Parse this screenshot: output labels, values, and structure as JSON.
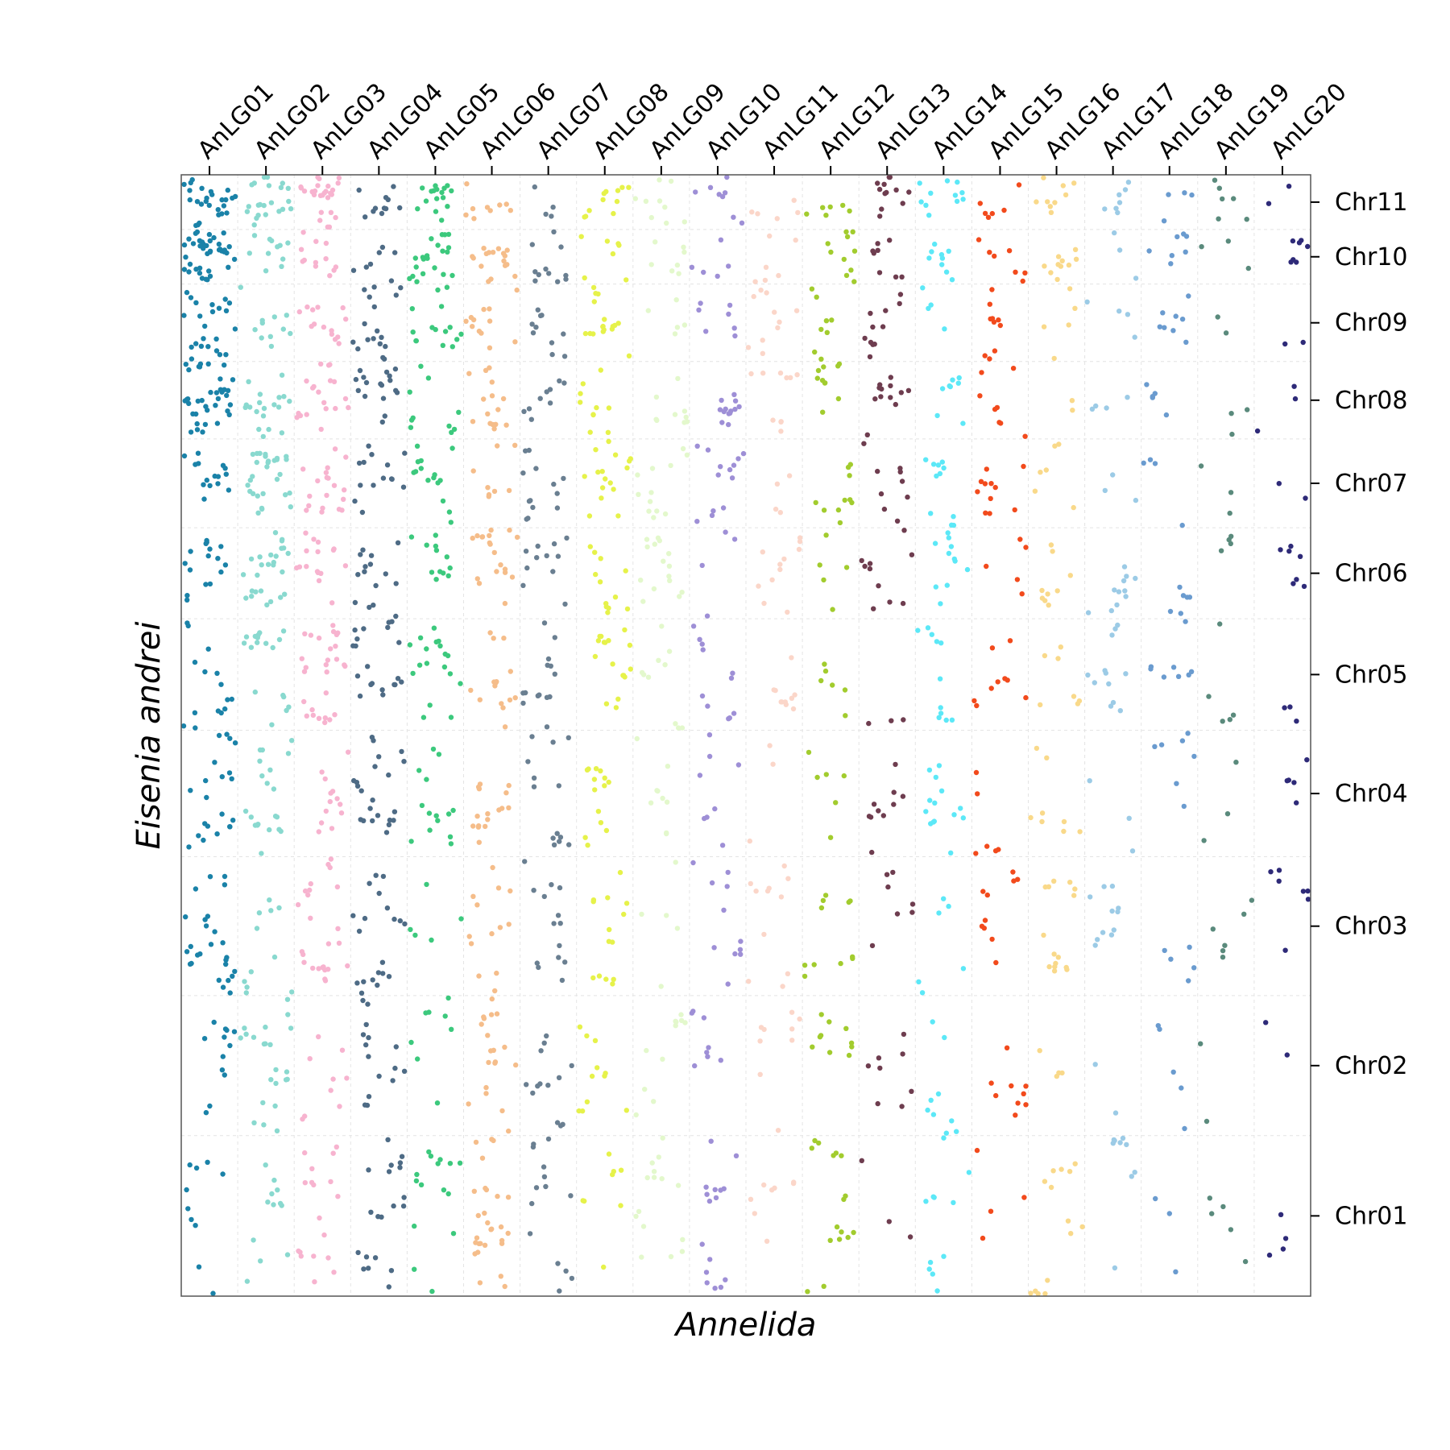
{
  "chart_data": {
    "type": "scatter",
    "title": "",
    "xlabel": "Annelida",
    "ylabel": "Eisenia andrei",
    "x_segments": [
      {
        "name": "AnLG01",
        "color": "#1a82a8",
        "density": 1.0
      },
      {
        "name": "AnLG02",
        "color": "#89d9cf",
        "density": 0.85
      },
      {
        "name": "AnLG03",
        "color": "#f7b3cf",
        "density": 0.85
      },
      {
        "name": "AnLG04",
        "color": "#4e6b85",
        "density": 0.7
      },
      {
        "name": "AnLG05",
        "color": "#3cc97d",
        "density": 0.7
      },
      {
        "name": "AnLG06",
        "color": "#f5bd8a",
        "density": 0.7
      },
      {
        "name": "AnLG07",
        "color": "#6a7f91",
        "density": 0.5
      },
      {
        "name": "AnLG08",
        "color": "#e6f24a",
        "density": 0.5
      },
      {
        "name": "AnLG09",
        "color": "#e3f8cc",
        "density": 0.45
      },
      {
        "name": "AnLG10",
        "color": "#9e8fd6",
        "density": 0.4
      },
      {
        "name": "AnLG11",
        "color": "#fbd6c9",
        "density": 0.4
      },
      {
        "name": "AnLG12",
        "color": "#a2cc2e",
        "density": 0.45
      },
      {
        "name": "AnLG13",
        "color": "#6e3d4f",
        "density": 0.35
      },
      {
        "name": "AnLG14",
        "color": "#5ce8f7",
        "density": 0.4
      },
      {
        "name": "AnLG15",
        "color": "#f24a1c",
        "density": 0.4
      },
      {
        "name": "AnLG16",
        "color": "#f9d98a",
        "density": 0.3
      },
      {
        "name": "AnLG17",
        "color": "#9ccbe6",
        "density": 0.3
      },
      {
        "name": "AnLG18",
        "color": "#6a9bcf",
        "density": 0.3
      },
      {
        "name": "AnLG19",
        "color": "#5a8a7c",
        "density": 0.2
      },
      {
        "name": "AnLG20",
        "color": "#2e2a78",
        "density": 0.18
      }
    ],
    "y_segments": [
      {
        "name": "Chr01",
        "length": 141
      },
      {
        "name": "Chr02",
        "length": 123
      },
      {
        "name": "Chr03",
        "length": 122
      },
      {
        "name": "Chr04",
        "length": 111
      },
      {
        "name": "Chr05",
        "length": 98
      },
      {
        "name": "Chr06",
        "length": 80
      },
      {
        "name": "Chr07",
        "length": 78
      },
      {
        "name": "Chr08",
        "length": 68
      },
      {
        "name": "Chr09",
        "length": 68
      },
      {
        "name": "Chr10",
        "length": 48
      },
      {
        "name": "Chr11",
        "length": 48
      }
    ],
    "x_segment_length": 100,
    "grid": true,
    "grid_style": "dashed",
    "point_seed": 20231
  }
}
